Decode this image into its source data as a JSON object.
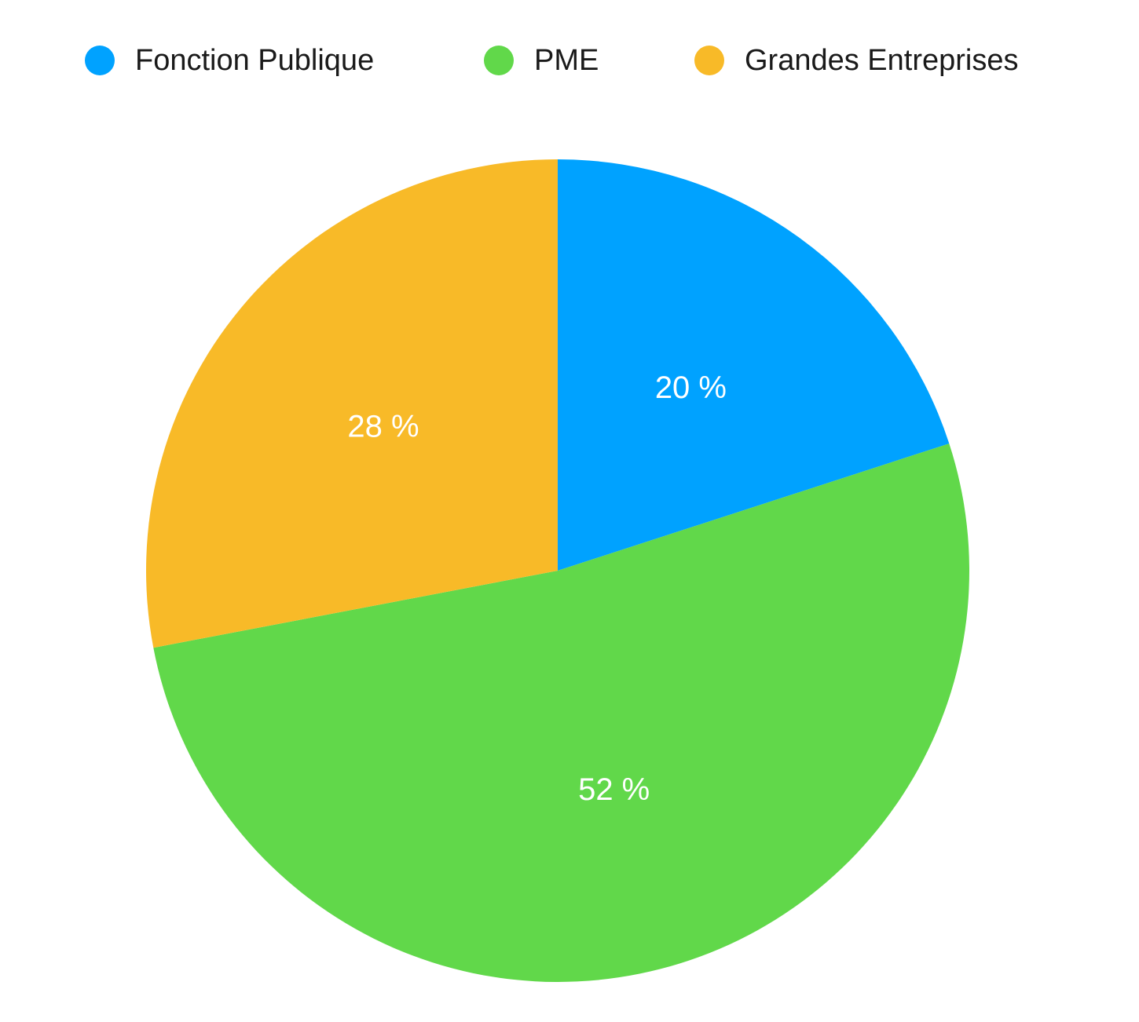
{
  "chart_data": {
    "type": "pie",
    "categories": [
      "Fonction Publique",
      "PME",
      "Grandes Entreprises"
    ],
    "values": [
      20,
      52,
      28
    ],
    "data_labels": [
      "20 %",
      "52 %",
      "28 %"
    ],
    "colors": [
      "#00a2ff",
      "#61d84a",
      "#f8ba28"
    ],
    "legend_position": "top",
    "start_angle": "top",
    "direction": "clockwise"
  },
  "legend": {
    "items": [
      {
        "label": "Fonction Publique",
        "color": "#00a2ff"
      },
      {
        "label": "PME",
        "color": "#61d84a"
      },
      {
        "label": "Grandes Entreprises",
        "color": "#f8ba28"
      }
    ]
  }
}
